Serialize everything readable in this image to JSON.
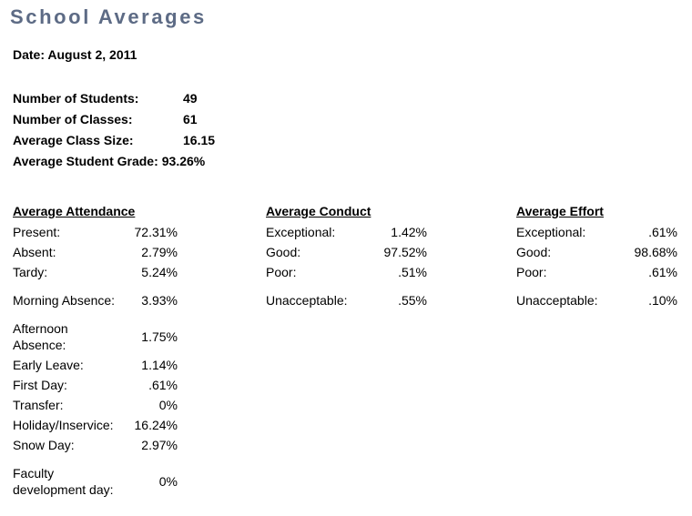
{
  "title": "School Averages",
  "date_line": "Date: August 2, 2011",
  "summary": [
    {
      "label": "Number of Students:",
      "value": "49"
    },
    {
      "label": "Number of Classes:",
      "value": "61"
    },
    {
      "label": "Average Class Size:",
      "value": "16.15"
    },
    {
      "label": "Average Student Grade:",
      "value": "93.26%"
    }
  ],
  "attendance": {
    "title": "Average Attendance",
    "rows": [
      {
        "label": "Present:",
        "value": "72.31%"
      },
      {
        "label": "Absent:",
        "value": "2.79%"
      },
      {
        "label": "Tardy:",
        "value": "5.24%"
      },
      {
        "label": "Morning Absence:",
        "value": "3.93%"
      },
      {
        "label": "Afternoon Absence:",
        "value": "1.75%"
      },
      {
        "label": "Early Leave:",
        "value": "1.14%"
      },
      {
        "label": "First Day:",
        "value": ".61%"
      },
      {
        "label": "Transfer:",
        "value": "0%"
      },
      {
        "label": "Holiday/Inservice:",
        "value": "16.24%"
      },
      {
        "label": "Snow Day:",
        "value": "2.97%"
      },
      {
        "label": "Faculty development day:",
        "value": "0%"
      }
    ]
  },
  "conduct": {
    "title": "Average Conduct",
    "rows": [
      {
        "label": "Exceptional:",
        "value": "1.42%"
      },
      {
        "label": "Good:",
        "value": "97.52%"
      },
      {
        "label": "Poor:",
        "value": ".51%"
      },
      {
        "label": "Unacceptable:",
        "value": ".55%"
      }
    ]
  },
  "effort": {
    "title": "Average Effort",
    "rows": [
      {
        "label": "Exceptional:",
        "value": ".61%"
      },
      {
        "label": "Good:",
        "value": "98.68%"
      },
      {
        "label": "Poor:",
        "value": ".61%"
      },
      {
        "label": "Unacceptable:",
        "value": ".10%"
      }
    ]
  }
}
